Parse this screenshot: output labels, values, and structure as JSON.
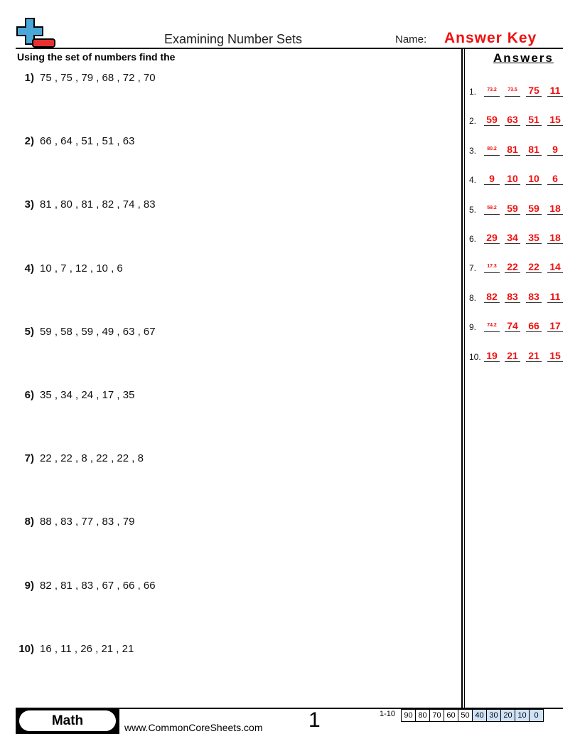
{
  "header": {
    "title": "Examining Number Sets",
    "name_label": "Name:",
    "name_value": "Answer Key",
    "logo": "plus-minus-logo-icon"
  },
  "instructions": "Using the set of numbers find the",
  "answers_heading": "Answers",
  "problems": [
    {
      "num": "1)",
      "set": "75 , 75 , 79 , 68 , 72 , 70"
    },
    {
      "num": "2)",
      "set": "66 , 64 , 51 , 51 , 63"
    },
    {
      "num": "3)",
      "set": "81 , 80 , 81 , 82 , 74 , 83"
    },
    {
      "num": "4)",
      "set": "10 , 7 , 12 , 10 , 6"
    },
    {
      "num": "5)",
      "set": "59 , 58 , 59 , 49 , 63 , 67"
    },
    {
      "num": "6)",
      "set": "35 , 34 , 24 , 17 , 35"
    },
    {
      "num": "7)",
      "set": "22 , 22 , 8 , 22 , 22 , 8"
    },
    {
      "num": "8)",
      "set": "88 , 83 , 77 , 83 , 79"
    },
    {
      "num": "9)",
      "set": "82 , 81 , 83 , 67 , 66 , 66"
    },
    {
      "num": "10)",
      "set": "16 , 11 , 26 , 21 , 21"
    }
  ],
  "answers": [
    {
      "num": "1.",
      "values": [
        "73.2",
        "73.5",
        "75",
        "11"
      ]
    },
    {
      "num": "2.",
      "values": [
        "59",
        "63",
        "51",
        "15"
      ]
    },
    {
      "num": "3.",
      "values": [
        "80.2",
        "81",
        "81",
        "9"
      ]
    },
    {
      "num": "4.",
      "values": [
        "9",
        "10",
        "10",
        "6"
      ]
    },
    {
      "num": "5.",
      "values": [
        "59.2",
        "59",
        "59",
        "18"
      ]
    },
    {
      "num": "6.",
      "values": [
        "29",
        "34",
        "35",
        "18"
      ]
    },
    {
      "num": "7.",
      "values": [
        "17.3",
        "22",
        "22",
        "14"
      ]
    },
    {
      "num": "8.",
      "values": [
        "82",
        "83",
        "83",
        "11"
      ]
    },
    {
      "num": "9.",
      "values": [
        "74.2",
        "74",
        "66",
        "17"
      ]
    },
    {
      "num": "10.",
      "values": [
        "19",
        "21",
        "21",
        "15"
      ]
    }
  ],
  "footer": {
    "subject": "Math",
    "website": "www.CommonCoreSheets.com",
    "page": "1",
    "score_label": "1-10",
    "scores": [
      "90",
      "80",
      "70",
      "60",
      "50",
      "40",
      "30",
      "20",
      "10",
      "0"
    ]
  },
  "colors": {
    "answer": "#f01010",
    "logo_plus": "#4aa8d8",
    "logo_minus": "#e83030",
    "score_highlight": "#cfe2f7"
  }
}
